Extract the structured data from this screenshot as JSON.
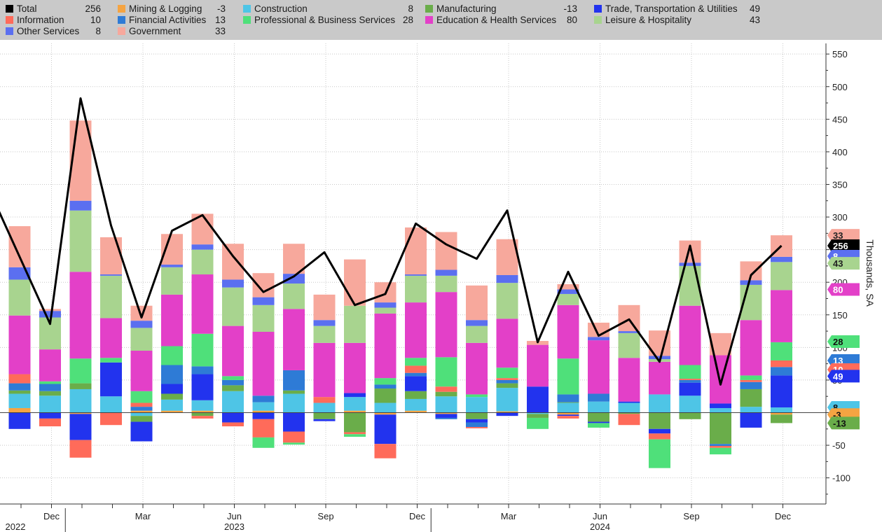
{
  "legend": [
    {
      "name": "Total",
      "value": "256",
      "color": "#000000"
    },
    {
      "name": "Information",
      "value": "10",
      "color": "#ff6b5a"
    },
    {
      "name": "Other Services",
      "value": "8",
      "color": "#5b6ff0"
    },
    {
      "name": "Mining & Logging",
      "value": "-3",
      "color": "#f5a442"
    },
    {
      "name": "Financial Activities",
      "value": "13",
      "color": "#2e7bd6"
    },
    {
      "name": "Government",
      "value": "33",
      "color": "#f7a89c"
    },
    {
      "name": "Construction",
      "value": "8",
      "color": "#4ec5e6"
    },
    {
      "name": "Professional & Business Services",
      "value": "28",
      "color": "#4fe07a"
    },
    {
      "name": "Manufacturing",
      "value": "-13",
      "color": "#6aad4a"
    },
    {
      "name": "Education & Health Services",
      "value": "80",
      "color": "#e340c8"
    },
    {
      "name": "Trade, Transportation & Utilities",
      "value": "49",
      "color": "#2233ee"
    },
    {
      "name": "Leisure & Hospitality",
      "value": "43",
      "color": "#a8d48f"
    }
  ],
  "chart_data": {
    "type": "bar",
    "stacked": true,
    "ylabel": "Thousands, SA",
    "ylim": [
      -140,
      570
    ],
    "yticks": [
      550,
      500,
      450,
      400,
      350,
      300,
      250,
      200,
      150,
      100,
      50,
      0,
      -50,
      -100
    ],
    "ytick_labels": [
      "550",
      "500",
      "450",
      "400",
      "350",
      "300",
      "250",
      "200",
      "150",
      "100",
      "50",
      "",
      "-50",
      "-100"
    ],
    "grid": true,
    "x_month_labels": [
      {
        "i": 1,
        "label": "Dec"
      },
      {
        "i": 4,
        "label": "Mar"
      },
      {
        "i": 7,
        "label": "Jun"
      },
      {
        "i": 10,
        "label": "Sep"
      },
      {
        "i": 13,
        "label": "Dec"
      },
      {
        "i": 16,
        "label": "Mar"
      },
      {
        "i": 19,
        "label": "Jun"
      },
      {
        "i": 22,
        "label": "Sep"
      },
      {
        "i": 25,
        "label": "Dec"
      }
    ],
    "x_year_labels": [
      {
        "i": 0,
        "label": "2022"
      },
      {
        "i": 7,
        "label": "2023"
      },
      {
        "i": 19,
        "label": "2024"
      }
    ],
    "categories": [
      "2022-11",
      "2022-12",
      "2023-01",
      "2023-02",
      "2023-03",
      "2023-04",
      "2023-05",
      "2023-06",
      "2023-07",
      "2023-08",
      "2023-09",
      "2023-10",
      "2023-11",
      "2023-12",
      "2024-01",
      "2024-02",
      "2024-03",
      "2024-04",
      "2024-05",
      "2024-06",
      "2024-07",
      "2024-08",
      "2024-09",
      "2024-10",
      "2024-11",
      "2024-12"
    ],
    "series": [
      {
        "name": "Mining & Logging",
        "color": "#f5a442",
        "values": [
          7,
          0,
          -2,
          0,
          3,
          3,
          3,
          0,
          3,
          0,
          0,
          3,
          -3,
          3,
          -2,
          0,
          2,
          0,
          -3,
          0,
          0,
          0,
          0,
          0,
          0,
          -3
        ]
      },
      {
        "name": "Construction",
        "color": "#4ec5e6",
        "values": [
          22,
          26,
          36,
          25,
          -5,
          17,
          16,
          33,
          13,
          29,
          15,
          21,
          15,
          18,
          25,
          24,
          36,
          -2,
          15,
          17,
          15,
          28,
          26,
          7,
          9,
          8
        ]
      },
      {
        "name": "Manufacturing",
        "color": "#6aad4a",
        "values": [
          5,
          7,
          9,
          0,
          -9,
          9,
          -5,
          9,
          0,
          5,
          -10,
          -30,
          22,
          12,
          7,
          -10,
          7,
          -6,
          1,
          -14,
          -2,
          -25,
          -10,
          -48,
          27,
          -13
        ]
      },
      {
        "name": "Trade, Transportation & Utilities",
        "color": "#2233ee",
        "values": [
          -25,
          -9,
          -40,
          52,
          -30,
          15,
          40,
          -15,
          -10,
          -29,
          -3,
          6,
          -45,
          23,
          -6,
          -5,
          -5,
          40,
          -2,
          -2,
          2,
          -7,
          20,
          7,
          -23,
          49
        ]
      },
      {
        "name": "Financial Activities",
        "color": "#2e7bd6",
        "values": [
          11,
          11,
          0,
          0,
          6,
          29,
          12,
          8,
          10,
          31,
          0,
          0,
          6,
          5,
          -2,
          -7,
          5,
          0,
          12,
          12,
          0,
          0,
          4,
          -3,
          11,
          13
        ]
      },
      {
        "name": "Information",
        "color": "#ff6b5a",
        "values": [
          14,
          -12,
          -27,
          -19,
          6,
          0,
          -4,
          -6,
          -28,
          -17,
          9,
          -3,
          -22,
          11,
          8,
          -2,
          3,
          0,
          -4,
          0,
          -17,
          -9,
          2,
          -3,
          3,
          10
        ]
      },
      {
        "name": "Professional & Business Services",
        "color": "#4fe07a",
        "values": [
          0,
          4,
          38,
          7,
          18,
          29,
          50,
          6,
          -16,
          -3,
          0,
          -4,
          10,
          12,
          45,
          4,
          16,
          -17,
          55,
          -7,
          0,
          -44,
          21,
          -10,
          7,
          28
        ]
      },
      {
        "name": "Education & Health Services",
        "color": "#e340c8",
        "values": [
          90,
          49,
          133,
          61,
          62,
          79,
          91,
          77,
          98,
          94,
          83,
          77,
          99,
          85,
          100,
          79,
          75,
          64,
          82,
          82,
          67,
          50,
          91,
          74,
          85,
          80
        ]
      },
      {
        "name": "Leisure & Hospitality",
        "color": "#a8d48f",
        "values": [
          55,
          49,
          94,
          65,
          35,
          42,
          38,
          59,
          41,
          39,
          26,
          57,
          9,
          41,
          25,
          26,
          55,
          0,
          17,
          0,
          38,
          4,
          61,
          0,
          54,
          43
        ]
      },
      {
        "name": "Other Services",
        "color": "#5b6ff0",
        "values": [
          19,
          10,
          15,
          2,
          11,
          4,
          8,
          12,
          12,
          15,
          9,
          0,
          8,
          2,
          9,
          9,
          12,
          0,
          7,
          5,
          3,
          5,
          5,
          0,
          7,
          8
        ]
      },
      {
        "name": "Government",
        "color": "#f7a89c",
        "values": [
          63,
          3,
          123,
          57,
          23,
          47,
          47,
          55,
          37,
          46,
          39,
          71,
          31,
          72,
          58,
          53,
          55,
          6,
          8,
          22,
          40,
          39,
          34,
          34,
          29,
          33
        ]
      }
    ],
    "total": {
      "name": "Total",
      "color": "#000000",
      "values": [
        239,
        136,
        482,
        287,
        146,
        279,
        303,
        240,
        185,
        209,
        246,
        165,
        182,
        290,
        258,
        236,
        310,
        108,
        216,
        118,
        143,
        78,
        256,
        43,
        211,
        256
      ]
    },
    "right_tags": [
      {
        "label": "33",
        "value": 272,
        "color": "#f7a89c",
        "text_color": "#222222"
      },
      {
        "label": "256",
        "value": 256,
        "color": "#000000",
        "text_color": "#ffffff"
      },
      {
        "label": "8",
        "value": 240,
        "color": "#5b6ff0",
        "text_color": "#ffffff"
      },
      {
        "label": "43",
        "value": 229,
        "color": "#a8d48f",
        "text_color": "#222222"
      },
      {
        "label": "80",
        "value": 189,
        "color": "#e340c8",
        "text_color": "#ffffff"
      },
      {
        "label": "28",
        "value": 109,
        "color": "#4fe07a",
        "text_color": "#111111"
      },
      {
        "label": "13",
        "value": 80,
        "color": "#2e7bd6",
        "text_color": "#ffffff"
      },
      {
        "label": "10",
        "value": 66,
        "color": "#ff6b5a",
        "text_color": "#ffffff"
      },
      {
        "label": "49",
        "value": 56,
        "color": "#2233ee",
        "text_color": "#ffffff"
      },
      {
        "label": "8",
        "value": 8,
        "color": "#4ec5e6",
        "text_color": "#111111"
      },
      {
        "label": "-3",
        "value": -3,
        "color": "#f5a442",
        "text_color": "#111111"
      },
      {
        "label": "-13",
        "value": -16,
        "color": "#6aad4a",
        "text_color": "#111111"
      }
    ]
  }
}
